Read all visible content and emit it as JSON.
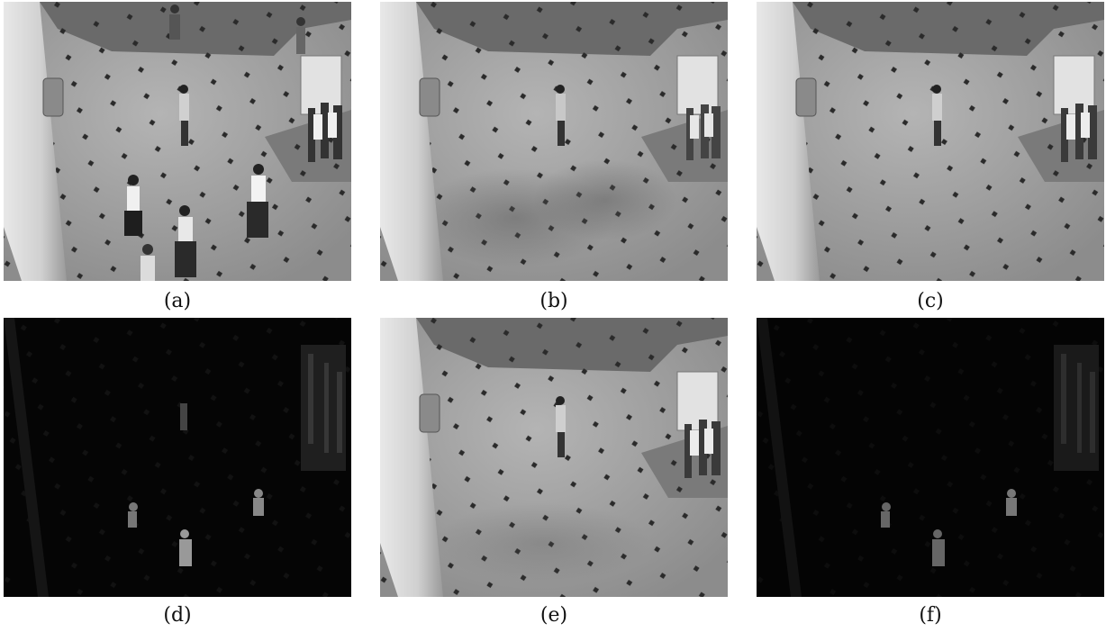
{
  "figure": {
    "panels": [
      {
        "id": "a",
        "caption": "(a)",
        "content": "original frame"
      },
      {
        "id": "b",
        "caption": "(b)",
        "content": "background estimate"
      },
      {
        "id": "c",
        "caption": "(c)",
        "content": "background estimate"
      },
      {
        "id": "d",
        "caption": "(d)",
        "content": "foreground residual"
      },
      {
        "id": "e",
        "caption": "(e)",
        "content": "background estimate"
      },
      {
        "id": "f",
        "caption": "(f)",
        "content": "foreground residual"
      }
    ]
  }
}
